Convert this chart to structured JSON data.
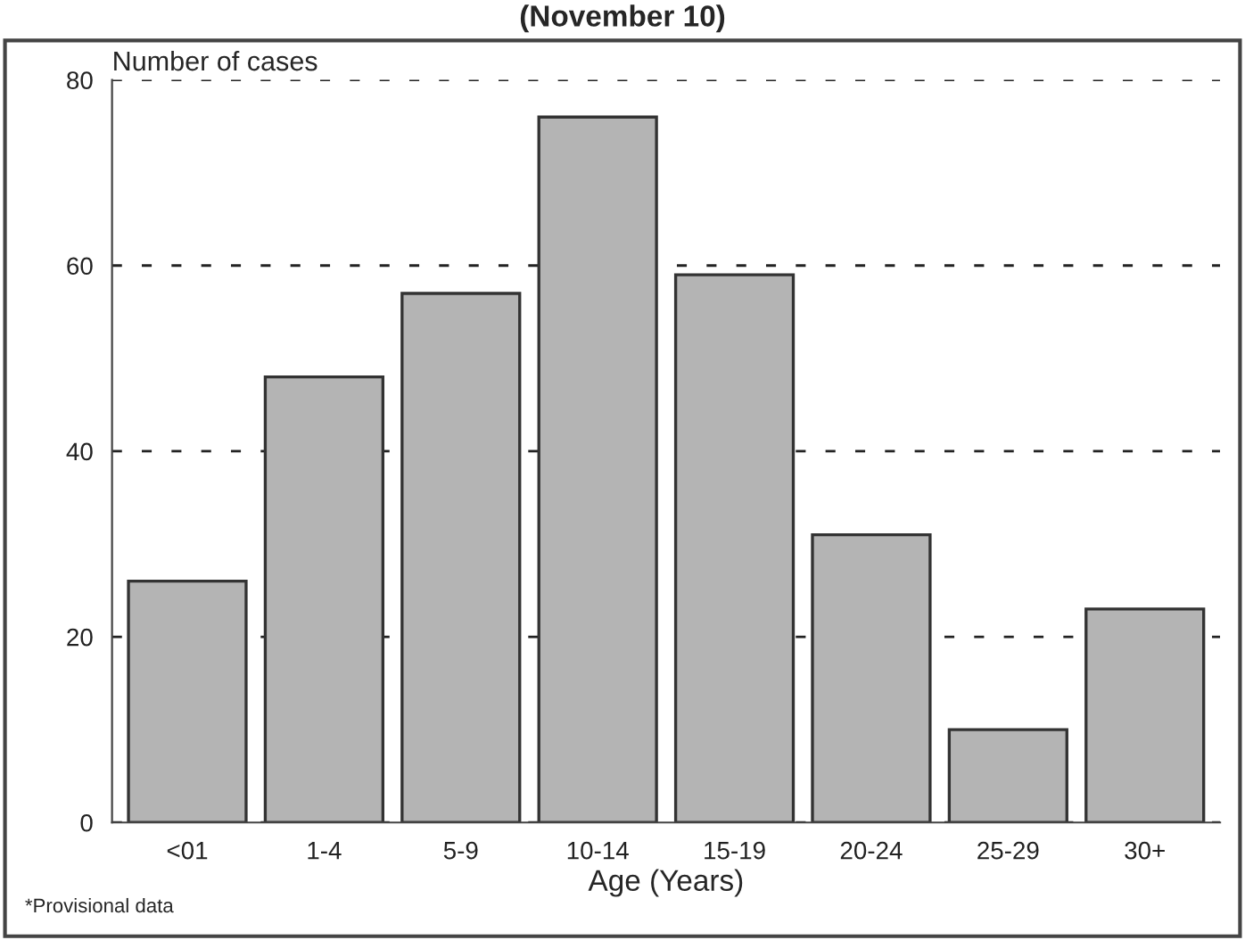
{
  "chart_data": {
    "type": "bar",
    "title": "(November 10)",
    "ylabel": "Number of cases",
    "xlabel": "Age (Years)",
    "categories": [
      "<01",
      "1-4",
      "5-9",
      "10-14",
      "15-19",
      "20-24",
      "25-29",
      "30+"
    ],
    "values": [
      26,
      48,
      57,
      76,
      59,
      31,
      10,
      23
    ],
    "color": "#b4b4b4",
    "ylim": [
      0,
      80
    ],
    "yticks": [
      0,
      20,
      40,
      60,
      80
    ],
    "grid": "y",
    "annotations": [
      "*Provisional data"
    ]
  }
}
